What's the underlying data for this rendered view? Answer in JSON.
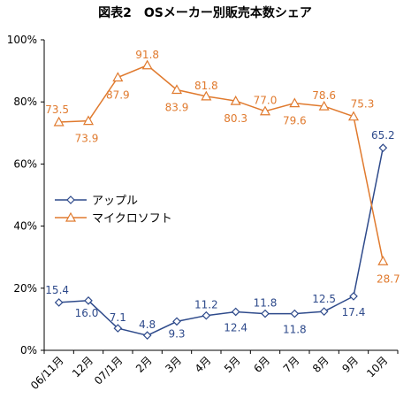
{
  "chart_data": {
    "type": "line",
    "title": "図表2　OSメーカー別販売本数シェア",
    "xlabel": "",
    "ylabel": "",
    "categories": [
      "06/11月",
      "12月",
      "07/1月",
      "2月",
      "3月",
      "4月",
      "5月",
      "6月",
      "7月",
      "8月",
      "9月",
      "10月"
    ],
    "ylim": [
      0,
      100
    ],
    "y_ticks": [
      0,
      20,
      40,
      60,
      80,
      100
    ],
    "y_tick_labels": [
      "0%",
      "20%",
      "40%",
      "60%",
      "80%",
      "100%"
    ],
    "grid": false,
    "legend_position": "center-left",
    "series": [
      {
        "name": "アップル",
        "color": "#2E4A8B",
        "marker": "diamond",
        "values": [
          15.4,
          16.0,
          7.1,
          4.8,
          9.3,
          11.2,
          12.4,
          11.8,
          11.8,
          12.5,
          17.4,
          65.2
        ],
        "labels": [
          "15.4",
          "16.0",
          "7.1",
          "4.8",
          "9.3",
          "11.2",
          "12.4",
          "11.8",
          "11.8",
          "12.5",
          "17.4",
          "65.2"
        ]
      },
      {
        "name": "マイクロソフト",
        "color": "#E07A2E",
        "marker": "triangle",
        "values": [
          73.5,
          73.9,
          87.9,
          91.8,
          83.9,
          81.8,
          80.3,
          77.0,
          79.6,
          78.6,
          75.3,
          28.7
        ],
        "labels": [
          "73.5",
          "73.9",
          "87.9",
          "91.8",
          "83.9",
          "81.8",
          "80.3",
          "77.0",
          "79.6",
          "78.6",
          "75.3",
          "28.7"
        ]
      }
    ]
  }
}
